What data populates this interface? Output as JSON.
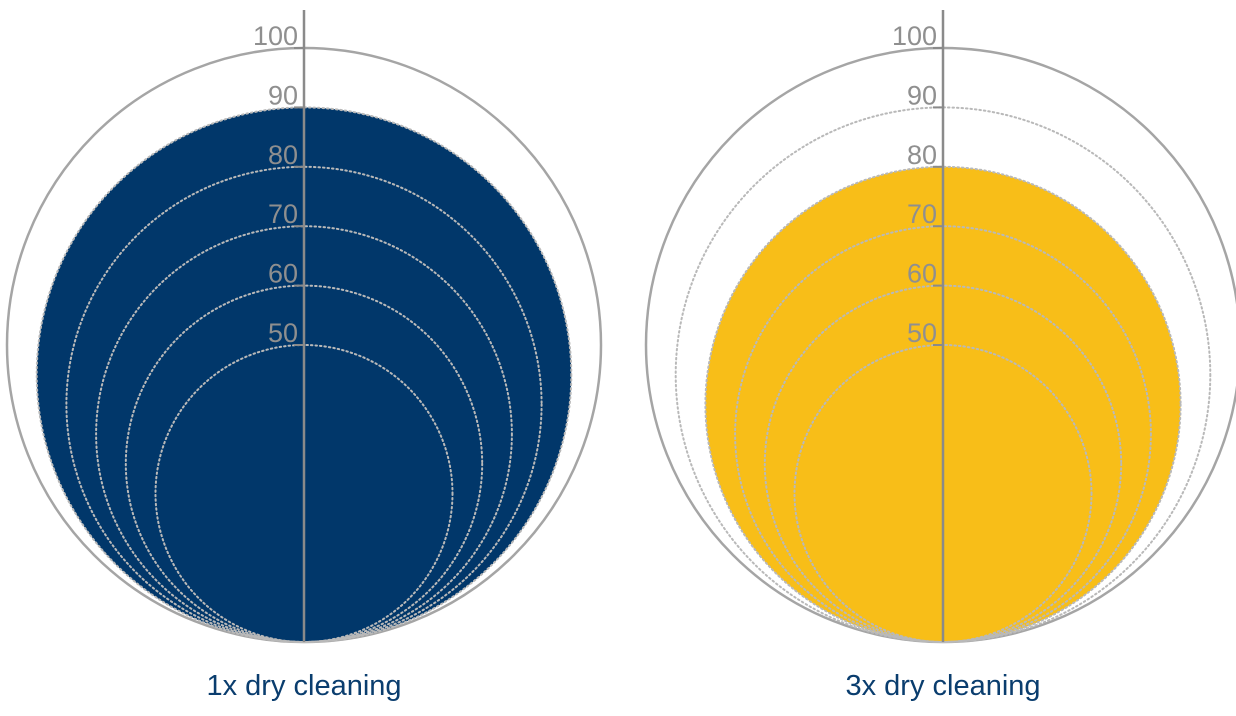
{
  "chart_data": [
    {
      "type": "area",
      "title": "",
      "caption": "1x dry cleaning",
      "value": 90,
      "fill_color": "#01376a",
      "tick_labels": [
        "100",
        "90",
        "80",
        "70",
        "60",
        "50"
      ],
      "reference_levels": [
        100,
        90,
        80,
        70,
        60,
        50
      ],
      "ylim": [
        0,
        100
      ],
      "grid": true
    },
    {
      "type": "area",
      "title": "",
      "caption": "3x dry cleaning",
      "value": 80,
      "fill_color": "#f8be18",
      "tick_labels": [
        "100",
        "90",
        "80",
        "70",
        "60",
        "50"
      ],
      "reference_levels": [
        100,
        90,
        80,
        70,
        60,
        50
      ],
      "ylim": [
        0,
        100
      ],
      "grid": true
    }
  ],
  "colors": {
    "outer_ring": "#a5a5a5",
    "guide_dots": "#b9b9b9",
    "axis": "#8a8a8a",
    "tick_text": "#8f8f8f",
    "caption_text": "#0a3d6e"
  }
}
